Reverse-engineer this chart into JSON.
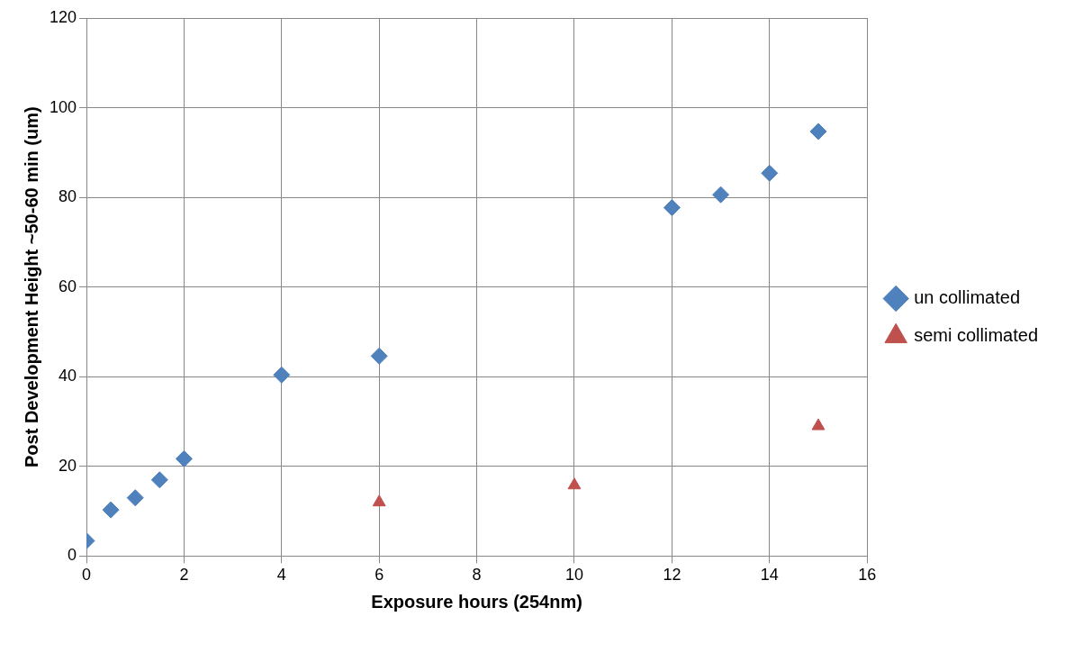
{
  "chart_data": {
    "type": "scatter",
    "xlabel": "Exposure hours (254nm)",
    "ylabel": "Post Development Height ~50-60 min (um)",
    "xlim": [
      0,
      16
    ],
    "xticks": [
      0,
      2,
      4,
      6,
      8,
      10,
      12,
      14,
      16
    ],
    "ylim": [
      0,
      120
    ],
    "yticks": [
      0,
      20,
      40,
      60,
      80,
      100,
      120
    ],
    "grid": true,
    "legend": "right",
    "series": [
      {
        "name": "un collimated",
        "color": "#4f81bd",
        "marker": "diamond",
        "x": [
          0,
          0.5,
          1,
          1.5,
          2,
          4,
          6,
          12,
          13,
          14,
          15
        ],
        "values": [
          3.4,
          10.3,
          13,
          17,
          21.7,
          40.4,
          44.6,
          77.7,
          80.6,
          85.4,
          94.7
        ]
      },
      {
        "name": "semi collimated",
        "color": "#c0504d",
        "marker": "triangle",
        "x": [
          6,
          10,
          15
        ],
        "values": [
          12,
          15.8,
          29
        ]
      }
    ]
  }
}
